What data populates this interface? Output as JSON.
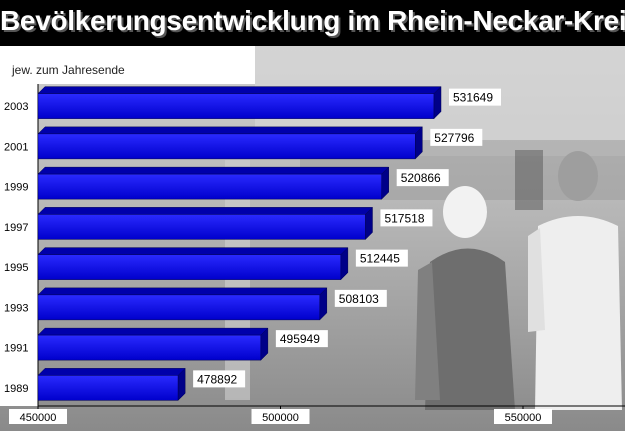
{
  "chart_data": {
    "type": "bar",
    "orientation": "horizontal",
    "title": "Bevölkerungsentwicklung im Rhein-Neckar-Kreis",
    "subtitle": "jew. zum Jahresende",
    "categories": [
      "2003",
      "2001",
      "1999",
      "1997",
      "1995",
      "1993",
      "1991",
      "1989"
    ],
    "values": [
      531649,
      527796,
      520866,
      517518,
      512445,
      508103,
      495949,
      478892
    ],
    "xlim": [
      450000,
      550000
    ],
    "xticks": [
      "450000",
      "500000",
      "550000"
    ],
    "bar_color": "#1010ee",
    "grid": false,
    "background": "photo of people walking (grayscale)"
  }
}
